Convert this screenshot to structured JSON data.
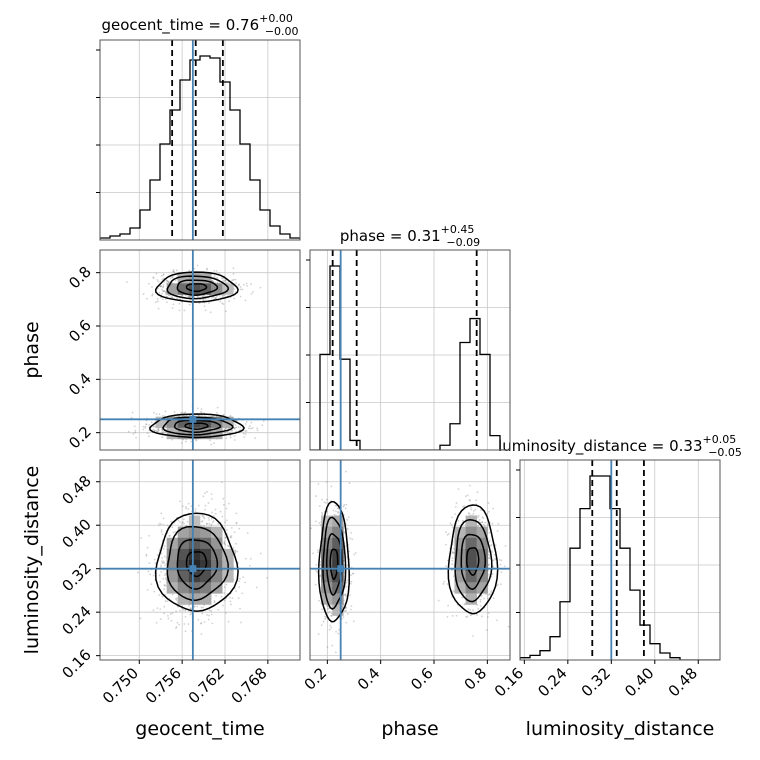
{
  "chart_data": {
    "type": "corner",
    "params": [
      "geocent_time",
      "phase",
      "luminosity_distance"
    ],
    "titles": [
      {
        "name": "geocent_time",
        "median": "0.76",
        "upper": "+0.00",
        "lower": "−0.00"
      },
      {
        "name": "phase",
        "median": "0.31",
        "upper": "+0.45",
        "lower": "−0.09"
      },
      {
        "name": "luminosity_distance",
        "median": "0.33",
        "upper": "+0.05",
        "lower": "−0.05"
      }
    ],
    "ranges": {
      "geocent_time": [
        0.7445,
        0.7725
      ],
      "phase": [
        0.135,
        0.885
      ],
      "luminosity_distance": [
        0.152,
        0.52
      ]
    },
    "ticks": {
      "geocent_time": {
        "values": [
          0.75,
          0.756,
          0.762,
          0.768
        ],
        "labels": [
          "0.750",
          "0.756",
          "0.762",
          "0.768"
        ]
      },
      "phase": {
        "values": [
          0.2,
          0.4,
          0.6,
          0.8
        ],
        "labels": [
          "0.2",
          "0.4",
          "0.6",
          "0.8"
        ]
      },
      "luminosity_distance": {
        "values": [
          0.16,
          0.24,
          0.32,
          0.4,
          0.48
        ],
        "labels": [
          "0.16",
          "0.24",
          "0.32",
          "0.40",
          "0.48"
        ]
      }
    },
    "truths": {
      "geocent_time": 0.7575,
      "phase": 0.25,
      "luminosity_distance": 0.32
    },
    "quantiles": {
      "geocent_time": [
        0.7546,
        0.7579,
        0.7617
      ],
      "phase": [
        0.22,
        0.31,
        0.76
      ],
      "luminosity_distance": [
        0.285,
        0.33,
        0.38
      ]
    },
    "histograms": {
      "geocent_time": {
        "start": 0.7445,
        "step": 0.0014,
        "counts": [
          1,
          2,
          3,
          6,
          15,
          30,
          48,
          65,
          80,
          90,
          92,
          91,
          79,
          65,
          48,
          30,
          15,
          7,
          3,
          1
        ]
      },
      "phase": {
        "start": 0.135,
        "step": 0.0375,
        "counts": [
          0,
          40,
          77,
          38,
          4,
          0,
          0,
          0,
          0,
          0,
          0,
          0,
          0,
          2,
          11,
          45,
          55,
          40,
          6,
          0
        ]
      },
      "luminosity_distance": {
        "start": 0.152,
        "step": 0.0184,
        "counts": [
          1,
          2,
          4,
          10,
          25,
          48,
          65,
          79,
          79,
          65,
          48,
          30,
          15,
          7,
          3,
          1,
          0,
          0,
          0,
          0
        ]
      }
    },
    "colors": {
      "truth": "#4682b4",
      "hist": "#000000",
      "quantile": "#000000",
      "points": "#7f7f7f"
    },
    "grid": true
  }
}
